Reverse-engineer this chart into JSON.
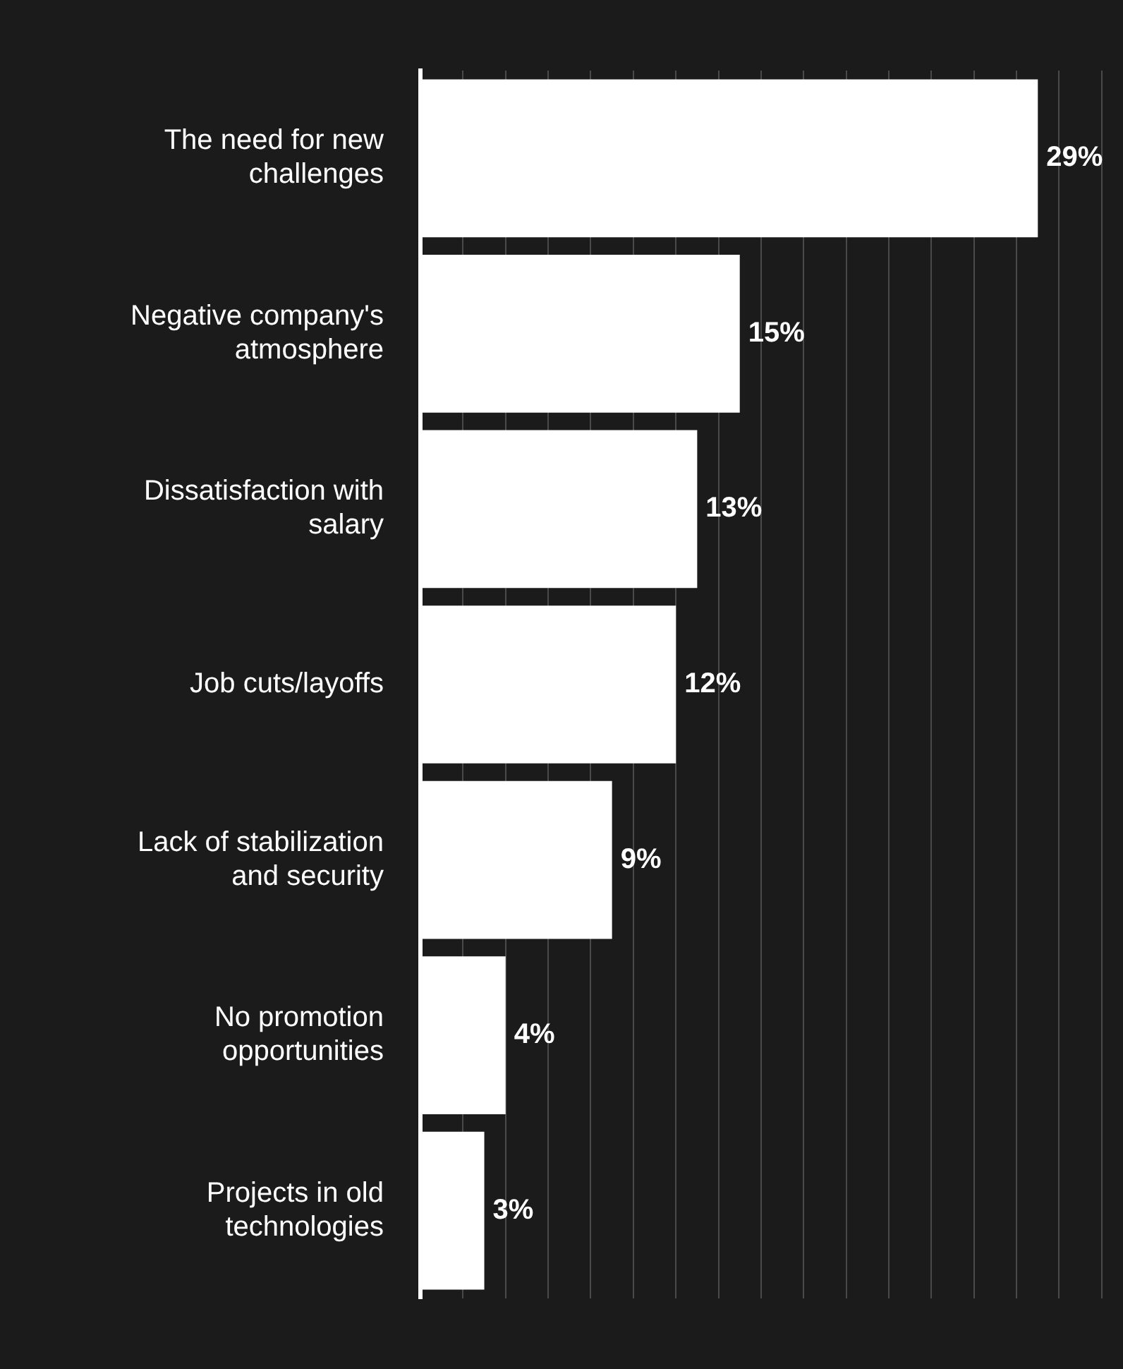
{
  "chart_data": {
    "type": "bar",
    "orientation": "horizontal",
    "categories": [
      "The need for new challenges",
      "Negative company's atmosphere",
      "Dissatisfaction with salary",
      "Job cuts/layoffs",
      "Lack of stabilization and security",
      "No promotion opportunities",
      "Projects in old technologies"
    ],
    "values": [
      29,
      15,
      13,
      12,
      9,
      4,
      3
    ],
    "value_labels": [
      "29%",
      "15%",
      "13%",
      "12%",
      "9%",
      "4%",
      "3%"
    ],
    "color": "#ffffff",
    "xlim": [
      0,
      33
    ],
    "xticks": [
      {
        "value": 0,
        "label": null
      },
      {
        "value": 2,
        "label": null
      },
      {
        "value": 4,
        "label": null
      },
      {
        "value": 6,
        "label": null
      },
      {
        "value": 8,
        "label": null
      },
      {
        "value": 10,
        "label": null
      },
      {
        "value": 12,
        "label": null
      },
      {
        "value": 14,
        "label": null
      },
      {
        "value": 16,
        "label": null
      },
      {
        "value": 18,
        "label": null
      },
      {
        "value": 20,
        "label": null
      },
      {
        "value": 22,
        "label": null
      },
      {
        "value": 24,
        "label": null
      },
      {
        "value": 26,
        "label": null
      },
      {
        "value": 28,
        "label": null
      },
      {
        "value": 30,
        "label": null
      },
      {
        "value": 32,
        "label": null
      }
    ],
    "grid": "x",
    "tick_labels": "y"
  }
}
